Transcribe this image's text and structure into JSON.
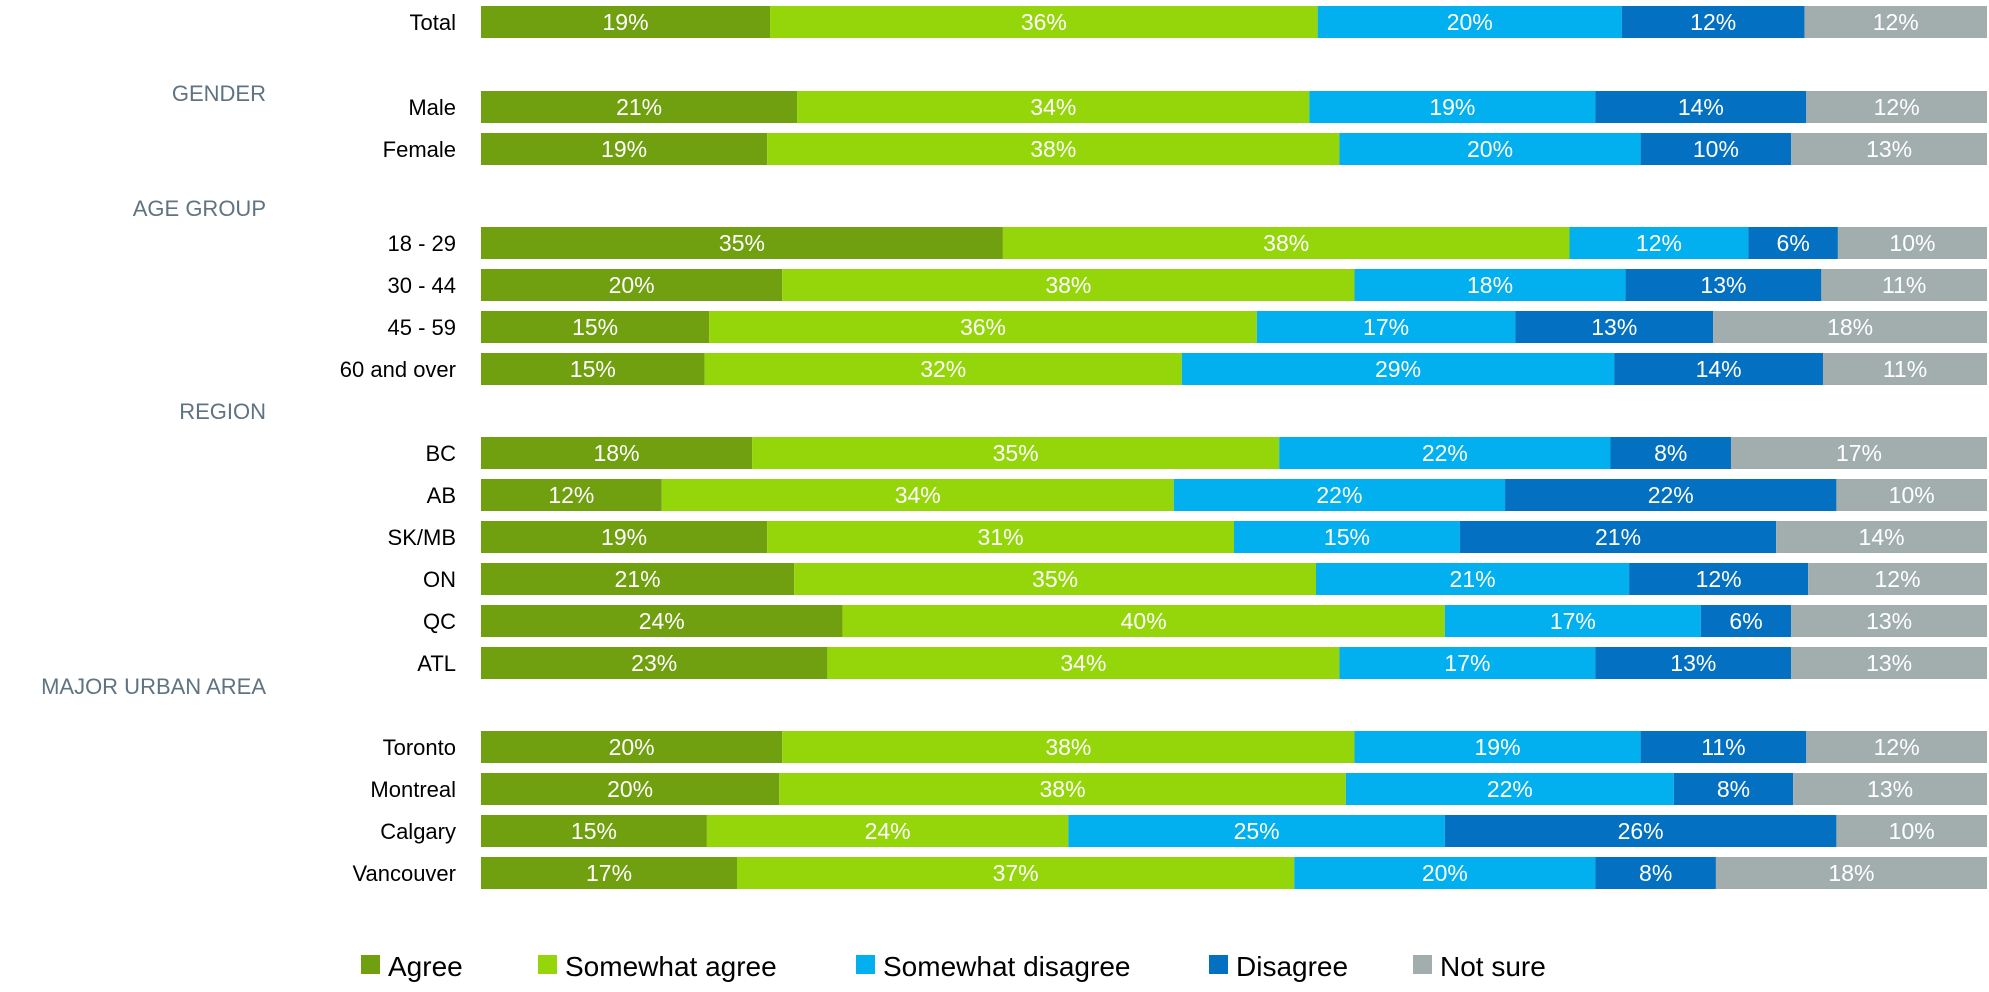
{
  "chart_data": {
    "type": "bar",
    "orientation": "horizontal",
    "stacked": true,
    "legend_position": "bottom",
    "grid": false,
    "series": [
      {
        "name": "Agree",
        "color": "#709f0f"
      },
      {
        "name": "Somewhat agree",
        "color": "#95d60a"
      },
      {
        "name": "Somewhat disagree",
        "color": "#02b0ef"
      },
      {
        "name": "Disagree",
        "color": "#0470c1"
      },
      {
        "name": "Not sure",
        "color": "#a2aeae"
      }
    ],
    "rows": [
      {
        "label": "Total",
        "values": [
          19,
          36,
          20,
          12,
          12
        ]
      },
      {
        "group": "GENDER"
      },
      {
        "label": "Male",
        "values": [
          21,
          34,
          19,
          14,
          12
        ]
      },
      {
        "label": "Female",
        "values": [
          19,
          38,
          20,
          10,
          13
        ]
      },
      {
        "group": "AGE GROUP"
      },
      {
        "label": "18 - 29",
        "values": [
          35,
          38,
          12,
          6,
          10
        ]
      },
      {
        "label": "30 - 44",
        "values": [
          20,
          38,
          18,
          13,
          11
        ]
      },
      {
        "label": "45 - 59",
        "values": [
          15,
          36,
          17,
          13,
          18
        ]
      },
      {
        "label": "60 and over",
        "values": [
          15,
          32,
          29,
          14,
          11
        ]
      },
      {
        "group": "REGION"
      },
      {
        "label": "BC",
        "values": [
          18,
          35,
          22,
          8,
          17
        ]
      },
      {
        "label": "AB",
        "values": [
          12,
          34,
          22,
          22,
          10
        ]
      },
      {
        "label": "SK/MB",
        "values": [
          19,
          31,
          15,
          21,
          14
        ]
      },
      {
        "label": "ON",
        "values": [
          21,
          35,
          21,
          12,
          12
        ]
      },
      {
        "label": "QC",
        "values": [
          24,
          40,
          17,
          6,
          13
        ]
      },
      {
        "label": "ATL",
        "values": [
          23,
          34,
          17,
          13,
          13
        ]
      },
      {
        "group": "MAJOR URBAN AREA"
      },
      {
        "label": "Toronto",
        "values": [
          20,
          38,
          19,
          11,
          12
        ]
      },
      {
        "label": "Montreal",
        "values": [
          20,
          38,
          22,
          8,
          13
        ]
      },
      {
        "label": "Calgary",
        "values": [
          15,
          24,
          25,
          26,
          10
        ]
      },
      {
        "label": "Vancouver",
        "values": [
          17,
          37,
          20,
          8,
          18
        ]
      }
    ],
    "value_suffix": "%"
  }
}
